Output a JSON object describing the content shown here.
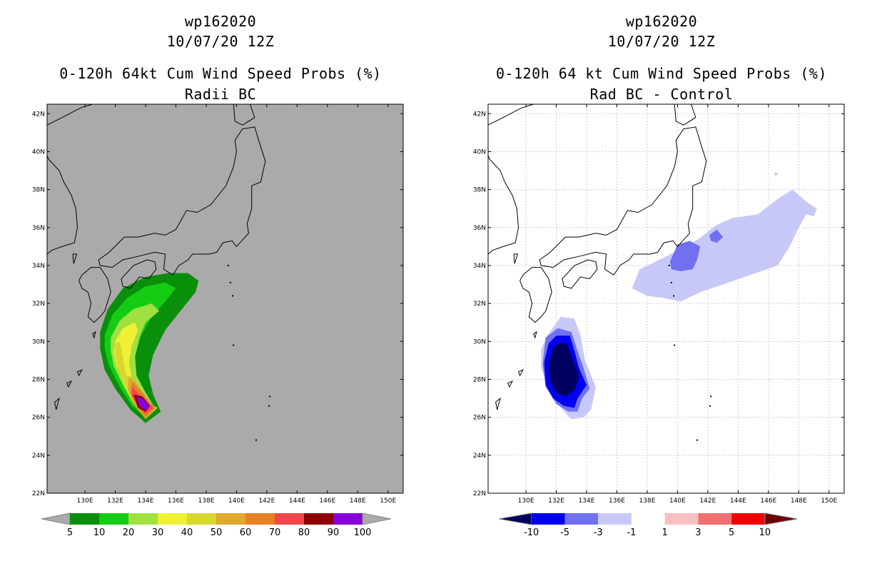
{
  "panels": [
    {
      "title_line1": "wp162020",
      "title_line2": "10/07/20 12Z",
      "title_line3": "0-120h 64kt Cum Wind Speed Probs (%)",
      "title_line4": "Radii BC",
      "background": "#aaaaaa",
      "colorbar_labels": [
        "5",
        "10",
        "20",
        "30",
        "40",
        "50",
        "60",
        "70",
        "80",
        "90",
        "100"
      ],
      "colorbar_colors": [
        "#0a8f0a",
        "#14cc14",
        "#a0e040",
        "#f0f036",
        "#d8d830",
        "#e0a82c",
        "#e88024",
        "#f04848",
        "#8e0000",
        "#8800d8"
      ]
    },
    {
      "title_line1": "wp162020",
      "title_line2": "10/07/20 12Z",
      "title_line3": "0-120h 64 kt Cum Wind Speed Probs (%)",
      "title_line4": "Rad BC - Control",
      "background": "#ffffff",
      "colorbar_labels": [
        "-10",
        "-5",
        "-3",
        "-1",
        "1",
        "3",
        "5",
        "10"
      ],
      "colorbar_colors": [
        "#0000f0",
        "#7070f0",
        "#c8c8f8",
        "#ffffff",
        "#f8c0c0",
        "#f07070",
        "#f00000"
      ],
      "colorbar_end_colors": [
        "#000060",
        "#6a0000"
      ]
    }
  ],
  "chart_data": [
    {
      "type": "heatmap",
      "title": "wp162020 10/07/20 12Z 0-120h 64kt Cum Wind Speed Probs (%) Radii BC",
      "x_tick_labels": [
        "130E",
        "132E",
        "134E",
        "136E",
        "138E",
        "140E",
        "142E",
        "144E",
        "146E",
        "148E",
        "150E"
      ],
      "y_tick_labels": [
        "22N",
        "24N",
        "26N",
        "28N",
        "30N",
        "32N",
        "34N",
        "36N",
        "38N",
        "40N",
        "42N"
      ],
      "xlim": [
        127.5,
        151.0
      ],
      "ylim": [
        22.0,
        42.5
      ],
      "levels": [
        5,
        10,
        20,
        30,
        40,
        50,
        60,
        70,
        80,
        90,
        100
      ],
      "max_probability_location": {
        "lon": 133.9,
        "lat": 26.9
      },
      "max_probability_class": "90-100"
    },
    {
      "type": "heatmap",
      "title": "wp162020 10/07/20 12Z 0-120h 64 kt Cum Wind Speed Probs (%) Rad BC - Control",
      "x_tick_labels": [
        "130E",
        "132E",
        "134E",
        "136E",
        "138E",
        "140E",
        "142E",
        "144E",
        "146E",
        "148E",
        "150E"
      ],
      "y_tick_labels": [
        "22N",
        "24N",
        "26N",
        "28N",
        "30N",
        "32N",
        "34N",
        "36N",
        "38N",
        "40N",
        "42N"
      ],
      "xlim": [
        127.5,
        151.0
      ],
      "ylim": [
        22.0,
        42.5
      ],
      "levels": [
        -10,
        -5,
        -3,
        -1,
        1,
        3,
        5,
        10
      ],
      "grid": true,
      "features": [
        {
          "region": "south of Kyushu",
          "min_class": "< -10",
          "lon": 132.0,
          "lat": 28.5
        },
        {
          "region": "south of Honshu",
          "min_class": "-5 to -3",
          "lon": 139.5,
          "lat": 34.5
        }
      ]
    }
  ]
}
